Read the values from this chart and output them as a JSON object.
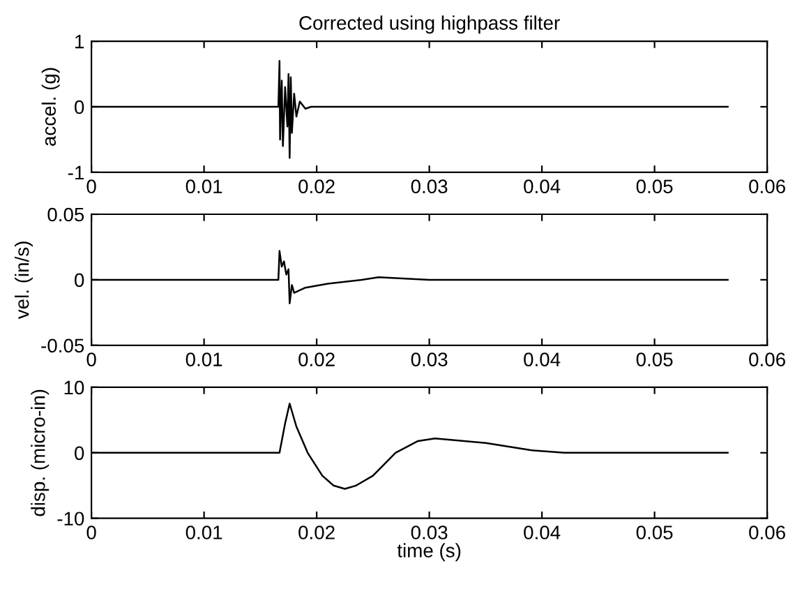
{
  "chart_data": [
    {
      "type": "line",
      "title": "Corrected using highpass filter",
      "ylabel": "accel. (g)",
      "xlim": [
        0,
        0.06
      ],
      "xticks": [
        0,
        0.01,
        0.02,
        0.03,
        0.04,
        0.05,
        0.06
      ],
      "ylim": [
        -1,
        1
      ],
      "yticks": [
        -1,
        0,
        1
      ],
      "grid": false,
      "legend": false,
      "series": [
        {
          "color": "#000000",
          "x": [
            0,
            0.0166,
            0.0167,
            0.01675,
            0.0169,
            0.017,
            0.0172,
            0.0174,
            0.0175,
            0.0176,
            0.0177,
            0.0178,
            0.018,
            0.0182,
            0.0185,
            0.019,
            0.0195,
            0.0565
          ],
          "values": [
            0,
            0,
            0.7,
            -0.5,
            0.4,
            -0.6,
            0.3,
            -0.3,
            0.5,
            -0.78,
            0.45,
            -0.4,
            0.2,
            -0.15,
            0.08,
            -0.03,
            0,
            0
          ]
        }
      ]
    },
    {
      "type": "line",
      "ylabel": "vel. (in/s)",
      "xlim": [
        0,
        0.06
      ],
      "xticks": [
        0,
        0.01,
        0.02,
        0.03,
        0.04,
        0.05,
        0.06
      ],
      "ylim": [
        -0.05,
        0.05
      ],
      "yticks": [
        -0.05,
        0,
        0.05
      ],
      "grid": false,
      "legend": false,
      "series": [
        {
          "color": "#000000",
          "x": [
            0,
            0.0166,
            0.0167,
            0.0169,
            0.0171,
            0.0173,
            0.0175,
            0.0176,
            0.0178,
            0.018,
            0.019,
            0.021,
            0.024,
            0.0255,
            0.03,
            0.0565
          ],
          "values": [
            0,
            0,
            0.022,
            0.01,
            0.014,
            0.004,
            0.008,
            -0.018,
            -0.004,
            -0.01,
            -0.006,
            -0.003,
            0,
            0.002,
            0,
            0
          ]
        }
      ]
    },
    {
      "type": "line",
      "ylabel": "disp. (micro-in)",
      "xlabel": "time (s)",
      "xlim": [
        0,
        0.06
      ],
      "xticks": [
        0,
        0.01,
        0.02,
        0.03,
        0.04,
        0.05,
        0.06
      ],
      "ylim": [
        -10,
        10
      ],
      "yticks": [
        -10,
        0,
        10
      ],
      "grid": false,
      "legend": false,
      "series": [
        {
          "color": "#000000",
          "x": [
            0,
            0.0167,
            0.0172,
            0.0176,
            0.0182,
            0.0192,
            0.0205,
            0.0215,
            0.0225,
            0.0235,
            0.025,
            0.027,
            0.029,
            0.0305,
            0.035,
            0.039,
            0.042,
            0.0565
          ],
          "values": [
            0,
            0,
            4.5,
            7.5,
            4,
            0,
            -3.5,
            -5,
            -5.5,
            -5,
            -3.5,
            0,
            1.8,
            2.2,
            1.5,
            0.4,
            0,
            0
          ]
        }
      ]
    }
  ]
}
